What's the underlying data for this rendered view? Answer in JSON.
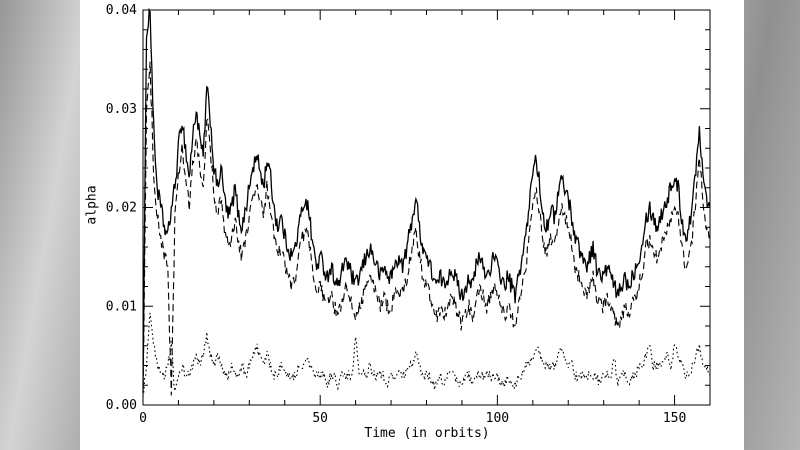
{
  "palette": {
    "axis_color": "#000000",
    "figure_background": "#ffffff",
    "backdrop_grays": [
      "#969696",
      "#d4d4d4",
      "#8f8f8f",
      "#cbcbcb"
    ]
  },
  "chart_data": {
    "type": "line",
    "title": "",
    "xlabel": "Time (in orbits)",
    "ylabel": "alpha",
    "xlim": [
      0,
      160
    ],
    "ylim": [
      0,
      0.04
    ],
    "grid": false,
    "legend": "none",
    "line_color": "#000000",
    "x_major_ticks": [
      0,
      50,
      100,
      150
    ],
    "x_tick_labels": [
      "0",
      "50",
      "100",
      "150"
    ],
    "x_minor_tick_step": 10,
    "y_major_ticks": [
      0,
      0.01,
      0.02,
      0.03,
      0.04
    ],
    "y_tick_labels": [
      "0.00",
      "0.01",
      "0.02",
      "0.03",
      "0.04"
    ],
    "y_minor_tick_step": 0.002,
    "x_step": 1,
    "series": [
      {
        "name": "upper-solid",
        "style": "solid",
        "noise_amplitude": 0.0009,
        "values": [
          0.002,
          0.038,
          0.04,
          0.028,
          0.022,
          0.02,
          0.018,
          0.017,
          0.02,
          0.022,
          0.026,
          0.029,
          0.026,
          0.023,
          0.027,
          0.03,
          0.027,
          0.025,
          0.032,
          0.029,
          0.024,
          0.022,
          0.024,
          0.021,
          0.019,
          0.02,
          0.022,
          0.019,
          0.018,
          0.02,
          0.022,
          0.024,
          0.025,
          0.024,
          0.022,
          0.025,
          0.023,
          0.02,
          0.018,
          0.019,
          0.017,
          0.016,
          0.015,
          0.016,
          0.018,
          0.02,
          0.021,
          0.019,
          0.016,
          0.014,
          0.015,
          0.014,
          0.013,
          0.014,
          0.013,
          0.012,
          0.013,
          0.015,
          0.014,
          0.013,
          0.012,
          0.013,
          0.014,
          0.015,
          0.016,
          0.015,
          0.014,
          0.013,
          0.014,
          0.013,
          0.013,
          0.014,
          0.015,
          0.014,
          0.015,
          0.017,
          0.019,
          0.021,
          0.018,
          0.016,
          0.015,
          0.014,
          0.013,
          0.012,
          0.013,
          0.012,
          0.013,
          0.014,
          0.013,
          0.012,
          0.011,
          0.012,
          0.013,
          0.012,
          0.014,
          0.015,
          0.014,
          0.013,
          0.014,
          0.015,
          0.014,
          0.013,
          0.012,
          0.013,
          0.012,
          0.011,
          0.013,
          0.015,
          0.017,
          0.02,
          0.024,
          0.025,
          0.022,
          0.019,
          0.018,
          0.02,
          0.019,
          0.021,
          0.023,
          0.022,
          0.021,
          0.019,
          0.017,
          0.016,
          0.015,
          0.014,
          0.015,
          0.016,
          0.014,
          0.013,
          0.013,
          0.014,
          0.013,
          0.012,
          0.011,
          0.012,
          0.013,
          0.012,
          0.013,
          0.014,
          0.015,
          0.017,
          0.019,
          0.02,
          0.019,
          0.018,
          0.019,
          0.02,
          0.021,
          0.022,
          0.023,
          0.022,
          0.019,
          0.017,
          0.018,
          0.02,
          0.024,
          0.028,
          0.024,
          0.021,
          0.02
        ]
      },
      {
        "name": "middle-dashed",
        "style": "dashed",
        "noise_amplitude": 0.0008,
        "values": [
          0.001,
          0.03,
          0.034,
          0.024,
          0.019,
          0.017,
          0.015,
          0.014,
          0.001,
          0.019,
          0.023,
          0.026,
          0.023,
          0.02,
          0.024,
          0.027,
          0.024,
          0.022,
          0.029,
          0.026,
          0.021,
          0.019,
          0.021,
          0.018,
          0.016,
          0.017,
          0.019,
          0.016,
          0.015,
          0.017,
          0.019,
          0.021,
          0.022,
          0.021,
          0.019,
          0.022,
          0.02,
          0.017,
          0.015,
          0.016,
          0.014,
          0.013,
          0.012,
          0.013,
          0.015,
          0.017,
          0.018,
          0.016,
          0.013,
          0.011,
          0.012,
          0.011,
          0.01,
          0.011,
          0.01,
          0.009,
          0.01,
          0.012,
          0.011,
          0.01,
          0.009,
          0.01,
          0.011,
          0.012,
          0.013,
          0.012,
          0.011,
          0.01,
          0.011,
          0.01,
          0.01,
          0.011,
          0.012,
          0.011,
          0.012,
          0.014,
          0.016,
          0.018,
          0.015,
          0.013,
          0.012,
          0.011,
          0.01,
          0.009,
          0.01,
          0.009,
          0.01,
          0.011,
          0.01,
          0.009,
          0.008,
          0.009,
          0.01,
          0.009,
          0.011,
          0.012,
          0.011,
          0.01,
          0.011,
          0.012,
          0.011,
          0.01,
          0.009,
          0.01,
          0.009,
          0.008,
          0.01,
          0.012,
          0.014,
          0.017,
          0.021,
          0.022,
          0.019,
          0.016,
          0.015,
          0.017,
          0.016,
          0.018,
          0.02,
          0.019,
          0.018,
          0.016,
          0.014,
          0.013,
          0.012,
          0.011,
          0.012,
          0.013,
          0.011,
          0.01,
          0.01,
          0.011,
          0.01,
          0.009,
          0.008,
          0.009,
          0.01,
          0.009,
          0.01,
          0.011,
          0.012,
          0.014,
          0.016,
          0.017,
          0.016,
          0.015,
          0.016,
          0.017,
          0.018,
          0.019,
          0.02,
          0.019,
          0.016,
          0.014,
          0.015,
          0.017,
          0.021,
          0.025,
          0.021,
          0.018,
          0.017
        ]
      },
      {
        "name": "lower-dotted",
        "style": "dotted",
        "noise_amplitude": 0.0005,
        "values": [
          0.001,
          0.004,
          0.009,
          0.006,
          0.004,
          0.003,
          0.003,
          0.004,
          0.006,
          0.001,
          0.003,
          0.004,
          0.003,
          0.003,
          0.004,
          0.005,
          0.004,
          0.005,
          0.007,
          0.005,
          0.004,
          0.005,
          0.004,
          0.003,
          0.003,
          0.004,
          0.003,
          0.003,
          0.004,
          0.003,
          0.004,
          0.005,
          0.006,
          0.005,
          0.004,
          0.005,
          0.004,
          0.003,
          0.003,
          0.004,
          0.003,
          0.003,
          0.003,
          0.003,
          0.004,
          0.004,
          0.005,
          0.004,
          0.003,
          0.003,
          0.003,
          0.003,
          0.002,
          0.003,
          0.003,
          0.002,
          0.003,
          0.003,
          0.003,
          0.003,
          0.007,
          0.003,
          0.003,
          0.003,
          0.004,
          0.003,
          0.003,
          0.003,
          0.003,
          0.002,
          0.003,
          0.003,
          0.003,
          0.003,
          0.003,
          0.004,
          0.004,
          0.005,
          0.004,
          0.003,
          0.003,
          0.003,
          0.002,
          0.002,
          0.003,
          0.002,
          0.003,
          0.003,
          0.003,
          0.002,
          0.002,
          0.003,
          0.003,
          0.002,
          0.003,
          0.003,
          0.003,
          0.003,
          0.003,
          0.003,
          0.003,
          0.002,
          0.002,
          0.003,
          0.002,
          0.002,
          0.003,
          0.003,
          0.004,
          0.004,
          0.005,
          0.006,
          0.005,
          0.004,
          0.004,
          0.004,
          0.004,
          0.005,
          0.006,
          0.005,
          0.004,
          0.004,
          0.003,
          0.003,
          0.003,
          0.003,
          0.003,
          0.003,
          0.003,
          0.002,
          0.003,
          0.003,
          0.003,
          0.005,
          0.002,
          0.003,
          0.003,
          0.002,
          0.003,
          0.003,
          0.004,
          0.004,
          0.005,
          0.006,
          0.004,
          0.004,
          0.004,
          0.005,
          0.005,
          0.004,
          0.006,
          0.005,
          0.004,
          0.003,
          0.003,
          0.004,
          0.005,
          0.006,
          0.004,
          0.004,
          0.003
        ]
      }
    ]
  }
}
